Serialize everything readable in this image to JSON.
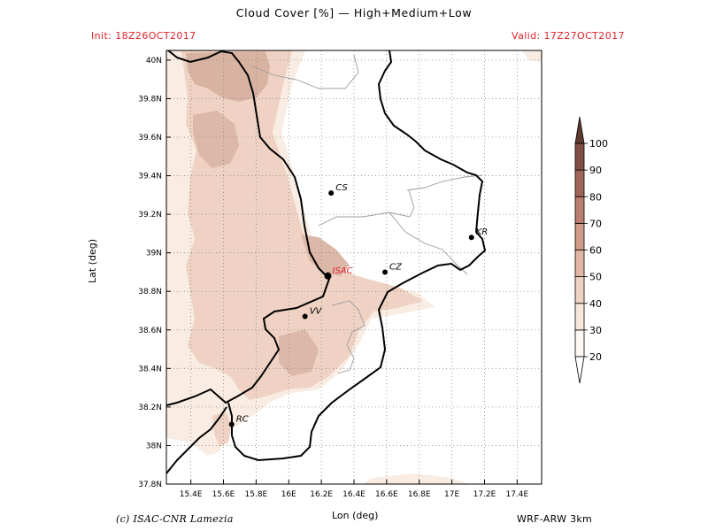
{
  "header": {
    "title": "Cloud Cover [%] — High+Medium+Low",
    "init": "Init: 18Z26OCT2017",
    "valid": "Valid: 17Z27OCT2017"
  },
  "footer": {
    "credit": "(c) ISAC-CNR Lamezia",
    "model": "WRF-ARW 3km"
  },
  "axes": {
    "xlabel": "Lon (deg)",
    "ylabel": "Lat (deg)",
    "xticks": [
      {
        "value": 15.4,
        "label": "15.4E"
      },
      {
        "value": 15.6,
        "label": "15.6E"
      },
      {
        "value": 15.8,
        "label": "15.8E"
      },
      {
        "value": 16.0,
        "label": "16E"
      },
      {
        "value": 16.2,
        "label": "16.2E"
      },
      {
        "value": 16.4,
        "label": "16.4E"
      },
      {
        "value": 16.6,
        "label": "16.6E"
      },
      {
        "value": 16.8,
        "label": "16.8E"
      },
      {
        "value": 17.0,
        "label": "17E"
      },
      {
        "value": 17.2,
        "label": "17.2E"
      },
      {
        "value": 17.4,
        "label": "17.4E"
      }
    ],
    "yticks": [
      {
        "value": 37.8,
        "label": "37.8N"
      },
      {
        "value": 38.0,
        "label": "38N"
      },
      {
        "value": 38.2,
        "label": "38.2N"
      },
      {
        "value": 38.4,
        "label": "38.4N"
      },
      {
        "value": 38.6,
        "label": "38.6N"
      },
      {
        "value": 38.8,
        "label": "38.8N"
      },
      {
        "value": 39.0,
        "label": "39N"
      },
      {
        "value": 39.2,
        "label": "39.2N"
      },
      {
        "value": 39.4,
        "label": "39.4N"
      },
      {
        "value": 39.6,
        "label": "39.6N"
      },
      {
        "value": 39.8,
        "label": "39.8N"
      },
      {
        "value": 40.0,
        "label": "40N"
      }
    ],
    "lon_range": [
      15.25,
      17.55
    ],
    "lat_range": [
      37.8,
      40.05
    ],
    "grid": "dotted"
  },
  "cities": [
    {
      "code": "CS",
      "lon": 16.26,
      "lat": 39.31,
      "highlight": false
    },
    {
      "code": "ISAC",
      "lon": 16.24,
      "lat": 38.88,
      "highlight": true
    },
    {
      "code": "CZ",
      "lon": 16.59,
      "lat": 38.9,
      "highlight": false
    },
    {
      "code": "KR",
      "lon": 17.12,
      "lat": 39.08,
      "highlight": false
    },
    {
      "code": "VV",
      "lon": 16.1,
      "lat": 38.67,
      "highlight": false
    },
    {
      "code": "RC",
      "lon": 15.65,
      "lat": 38.11,
      "highlight": false
    }
  ],
  "colorbar": {
    "levels": [
      "20",
      "30",
      "40",
      "50",
      "60",
      "70",
      "80",
      "90",
      "100"
    ],
    "colors": [
      "#fdf8f3",
      "#f7e6da",
      "#efd2c3",
      "#e2b6a4",
      "#d09a88",
      "#b97f70",
      "#9e6658",
      "#7f4e44",
      "#5e3a31"
    ]
  },
  "colors": {
    "cloud_light": "#f9ece2",
    "cloud_mid": "#efd2c3",
    "cloud_dark": "#d7ac9b",
    "city_label_highlight": "#e0232a",
    "header_red": "#e0232a"
  }
}
